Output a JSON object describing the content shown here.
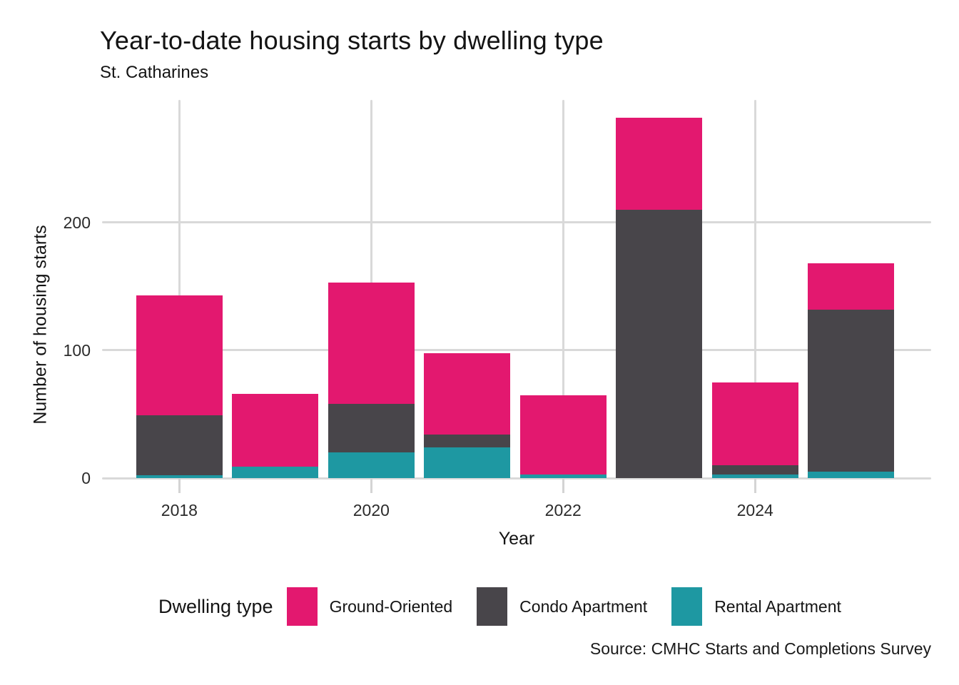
{
  "title": "Year-to-date housing starts by dwelling type",
  "subtitle": "St. Catharines",
  "source_note": "Source: CMHC Starts and Completions Survey",
  "legend": {
    "title": "Dwelling type",
    "entries": [
      "Ground-Oriented",
      "Condo Apartment",
      "Rental Apartment"
    ]
  },
  "colors": {
    "ground_oriented": "#E3186F",
    "condo_apartment": "#48454A",
    "rental_apartment": "#1E98A2",
    "gridline": "#D9D9D9",
    "tick_mark": "#D4D4D4",
    "axis_text": "#2B2B2B"
  },
  "chart_data": {
    "type": "bar",
    "stacked": true,
    "title": "Year-to-date housing starts by dwelling type",
    "subtitle": "St. Catharines",
    "xlabel": "Year",
    "ylabel": "Number of housing starts",
    "legend_title": "Dwelling type",
    "legend_position": "bottom",
    "source_note": "Source: CMHC Starts and Completions Survey",
    "categories": [
      "2018",
      "2019",
      "2020",
      "2021",
      "2022",
      "2023",
      "2024",
      "2025"
    ],
    "x_tick_labels": [
      "2018",
      "2020",
      "2022",
      "2024"
    ],
    "y_ticks": [
      0,
      100,
      200
    ],
    "ylim": [
      0,
      296
    ],
    "grid": true,
    "stack_order_bottom_to_top": [
      "Rental Apartment",
      "Condo Apartment",
      "Ground-Oriented"
    ],
    "series": [
      {
        "name": "Ground-Oriented",
        "color": "#E3186F",
        "values": [
          94,
          57,
          95,
          64,
          62,
          72,
          65,
          36
        ]
      },
      {
        "name": "Condo Apartment",
        "color": "#48454A",
        "values": [
          47,
          0,
          38,
          10,
          0,
          210,
          7,
          127
        ]
      },
      {
        "name": "Rental Apartment",
        "color": "#1E98A2",
        "values": [
          2,
          9,
          20,
          24,
          3,
          0,
          3,
          5
        ]
      }
    ],
    "totals": [
      143,
      66,
      153,
      98,
      65,
      282,
      75,
      168
    ]
  }
}
